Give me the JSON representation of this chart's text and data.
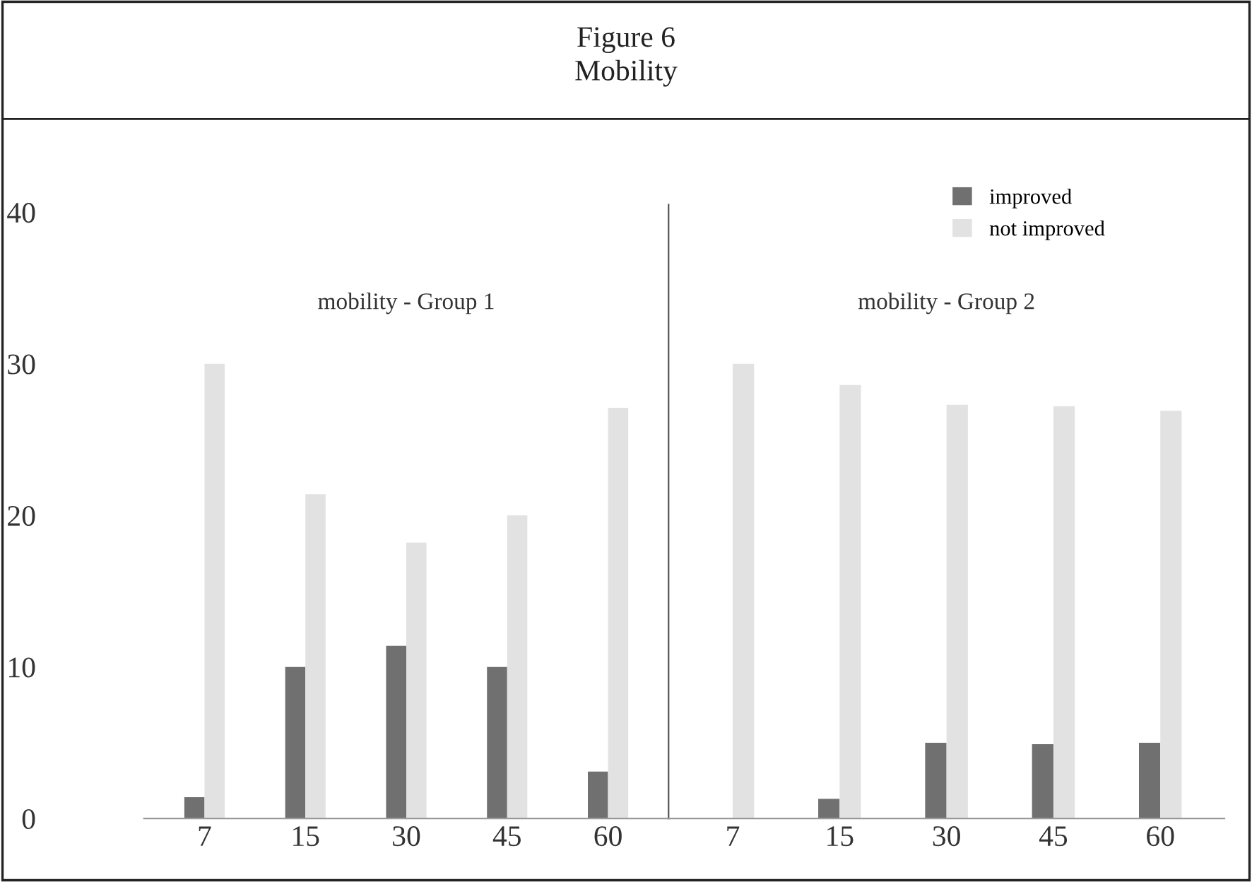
{
  "chart_data": [
    {
      "type": "bar",
      "title": "mobility - Group 1",
      "annotations": [
        "Figure 6",
        "Mobility"
      ],
      "categories": [
        "7",
        "15",
        "30",
        "45",
        "60"
      ],
      "series": [
        {
          "color": "#707070",
          "values": [
            1.4,
            10,
            11.4,
            10,
            3.1
          ]
        },
        {
          "color": "#e2e2e2",
          "values": [
            30,
            21.4,
            18.2,
            20,
            27.1
          ]
        }
      ],
      "ylim": [
        0,
        40.5
      ],
      "yticks": [
        0,
        10,
        20,
        30,
        40
      ],
      "grid": false
    },
    {
      "type": "bar",
      "title": "mobility - Group 2",
      "categories": [
        "7",
        "15",
        "30",
        "45",
        "60"
      ],
      "series": [
        {
          "name": "improved",
          "color": "#707070",
          "values": [
            0,
            1.3,
            5,
            4.9,
            5
          ]
        },
        {
          "name": "not improved",
          "color": "#e2e2e2",
          "values": [
            30,
            28.6,
            27.3,
            27.2,
            26.9
          ]
        }
      ],
      "ylim": [
        0,
        40.5
      ],
      "yticks": [
        0,
        10,
        20,
        30,
        40
      ],
      "tick_labels": "x",
      "grid": false,
      "legend": "top right"
    }
  ]
}
